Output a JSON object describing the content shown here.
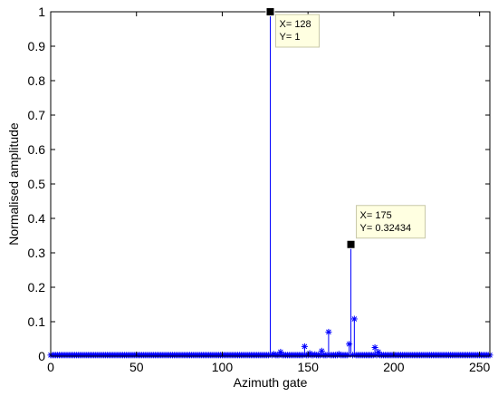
{
  "chart_data": {
    "type": "stem",
    "xlabel": "Azimuth gate",
    "ylabel": "Normalised amplitude",
    "xlim": [
      0,
      256
    ],
    "ylim": [
      0,
      1
    ],
    "xticks": [
      0,
      50,
      100,
      150,
      200,
      250
    ],
    "yticks": [
      0,
      0.1,
      0.2,
      0.3,
      0.4,
      0.5,
      0.6,
      0.7,
      0.8,
      0.9,
      1
    ],
    "ytick_labels": [
      "0",
      "0.1",
      "0.2",
      "0.3",
      "0.4",
      "0.5",
      "0.6",
      "0.7",
      "0.8",
      "0.9",
      "1"
    ],
    "series": [
      {
        "marker": "asterisk",
        "color": "#0000ff",
        "x_start": 0,
        "x_end": 256,
        "baseline_value": 0.003,
        "nonzero_points": [
          {
            "x": 128,
            "y": 1
          },
          {
            "x": 130,
            "y": 0.006
          },
          {
            "x": 134,
            "y": 0.012
          },
          {
            "x": 148,
            "y": 0.028
          },
          {
            "x": 151,
            "y": 0.008
          },
          {
            "x": 154,
            "y": 0.005
          },
          {
            "x": 158,
            "y": 0.015
          },
          {
            "x": 162,
            "y": 0.07
          },
          {
            "x": 168,
            "y": 0.006
          },
          {
            "x": 174,
            "y": 0.035
          },
          {
            "x": 175,
            "y": 0.32434
          },
          {
            "x": 177,
            "y": 0.108
          },
          {
            "x": 189,
            "y": 0.025
          },
          {
            "x": 191,
            "y": 0.012
          }
        ]
      }
    ],
    "datatips": [
      {
        "x": 128,
        "y": 1,
        "line1": "X= 128",
        "line2": "Y= 1"
      },
      {
        "x": 175,
        "y": 0.32434,
        "line1": "X= 175",
        "line2": "Y= 0.32434"
      }
    ],
    "grid": false,
    "legend": "none"
  }
}
